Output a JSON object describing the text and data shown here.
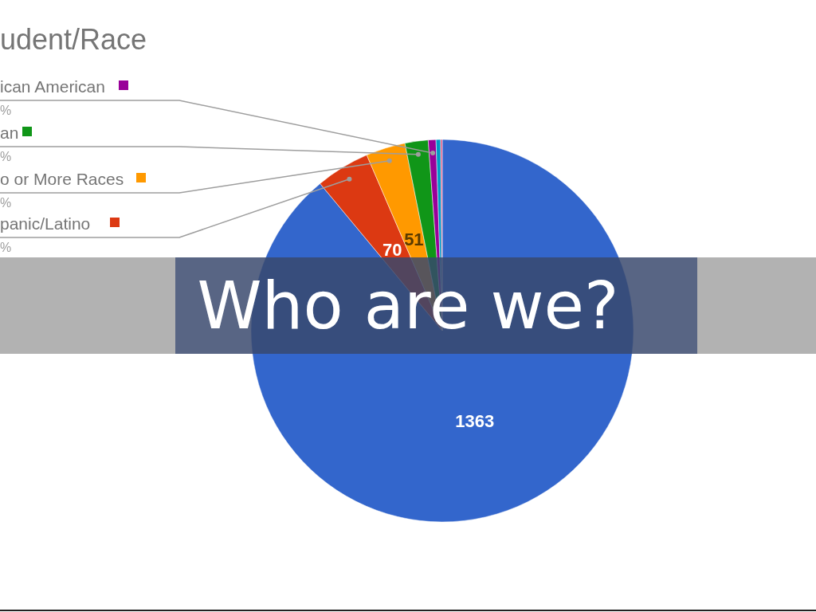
{
  "chart_data": {
    "type": "pie",
    "title": "udent/Race",
    "categories": [
      null,
      "panic/Latino",
      "o or More Races",
      "an",
      "ican American",
      null,
      null
    ],
    "values": [
      1363,
      70,
      51,
      30,
      10,
      6,
      2
    ],
    "colors": [
      "#3366cc",
      "#dc3912",
      "#ff9900",
      "#109618",
      "#990099",
      "#0099c6",
      "#dd4477"
    ],
    "value_labels": [
      "1363",
      "70",
      "51",
      null,
      null,
      null,
      null
    ],
    "annotations": [
      "Who are we?",
      "%",
      "%",
      "%",
      "%"
    ],
    "legend": "top left"
  }
}
